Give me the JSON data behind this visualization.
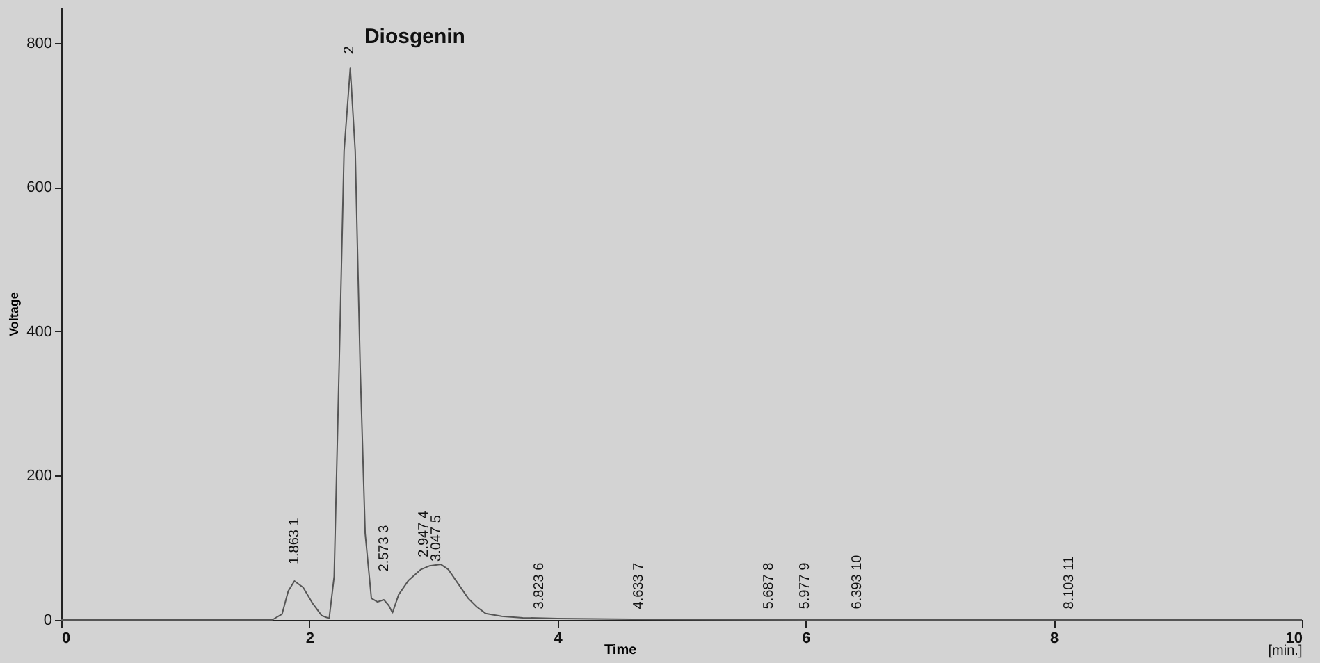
{
  "chart_data": {
    "type": "line",
    "xlabel": "Time",
    "ylabel": "Voltage",
    "x": [
      0,
      1.7,
      1.78,
      1.83,
      1.88,
      1.95,
      2.03,
      2.1,
      2.16,
      2.2,
      2.24,
      2.28,
      2.33,
      2.37,
      2.41,
      2.45,
      2.5,
      2.55,
      2.6,
      2.64,
      2.67,
      2.72,
      2.8,
      2.9,
      2.97,
      3.06,
      3.12,
      3.2,
      3.28,
      3.35,
      3.42,
      3.55,
      3.72,
      4.0,
      4.6,
      6,
      10
    ],
    "series": [
      {
        "color": "#555555",
        "values": [
          0,
          0,
          8,
          40,
          54,
          45,
          22,
          6,
          2,
          60,
          350,
          650,
          765,
          650,
          350,
          120,
          30,
          25,
          28,
          20,
          10,
          35,
          55,
          70,
          75,
          77,
          70,
          50,
          30,
          18,
          9,
          5,
          3,
          2,
          1,
          0,
          0
        ]
      }
    ],
    "xlim": [
      0,
      10
    ],
    "ylim": [
      0,
      850
    ],
    "xticks": [
      0,
      2,
      4,
      6,
      8,
      10
    ],
    "yticks": [
      0,
      200,
      400,
      600,
      800
    ],
    "grid": false,
    "marker": "none",
    "line_style": "solid",
    "annotations": [
      "Diosgenin",
      "1.863   1",
      "2",
      "2.573   3",
      "2.947   4",
      "3.047   5",
      "3.823   6",
      "4.633   7",
      "5.687   8",
      "5.977   9",
      "6.393   10",
      "8.103   11",
      "[min.]"
    ]
  }
}
